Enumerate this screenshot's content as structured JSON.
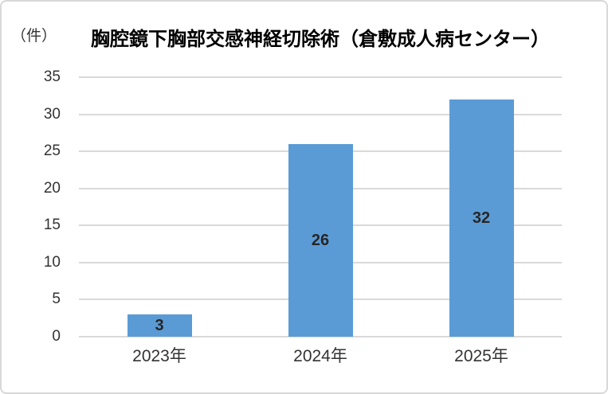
{
  "chart_data": {
    "type": "bar",
    "title": "胸腔鏡下胸部交感神経切除術（倉敷成人病センター）",
    "unit_label": "（件）",
    "categories": [
      "2023年",
      "2024年",
      "2025年"
    ],
    "values": [
      3,
      26,
      32
    ],
    "data_labels": [
      "3",
      "26",
      "32"
    ],
    "xlabel": "",
    "ylabel": "",
    "ylim": [
      0,
      35
    ],
    "ytick_step": 5,
    "yticks": [
      0,
      5,
      10,
      15,
      20,
      25,
      30,
      35
    ],
    "grid": true,
    "legend": "none",
    "data_labels_position": "inside-center",
    "colors": {
      "bar": "#5B9BD5",
      "gridline": "#D9D9D9",
      "frame_border": "#D8D8D8",
      "title_text": "#000000",
      "axis_label_text": "#333333",
      "data_label_text": "#262626",
      "background": "#FFFFFF"
    }
  }
}
